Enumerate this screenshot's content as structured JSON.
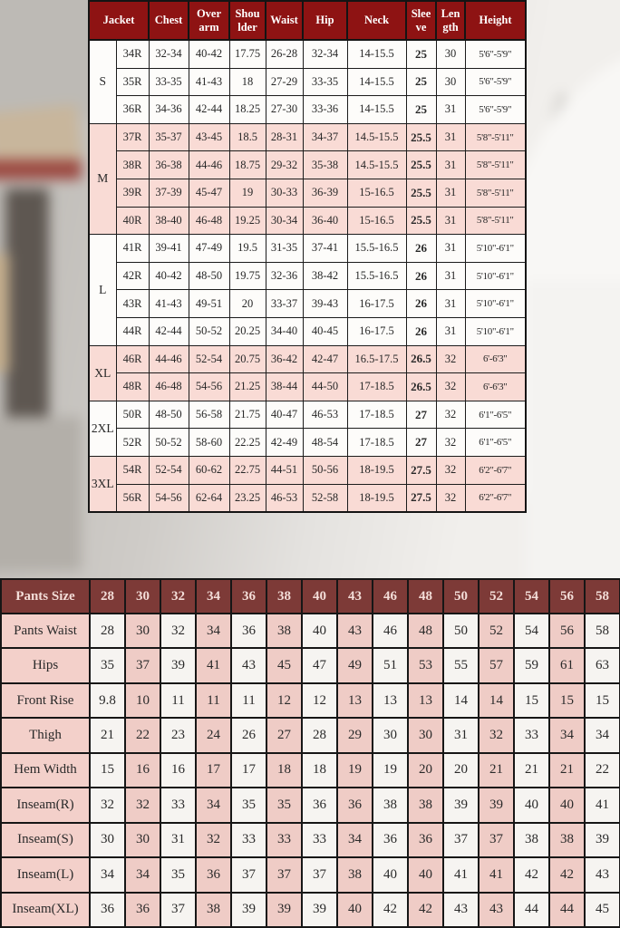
{
  "colors": {
    "jacket_header_bg": "#8e1313",
    "pants_header_bg": "#7d3a37",
    "pink_row": "#f9dbd5",
    "white_row": "#fdfcfa",
    "pants_label_bg": "#f3d0ca",
    "pants_cell_pink": "#efccc6",
    "pants_cell_white": "#f6f4f1",
    "border": "#1c1c1c"
  },
  "chart_data": [
    {
      "type": "table",
      "title": "Jacket size chart",
      "columns": [
        "Jacket",
        "Chest",
        "Over arm",
        "Shou lder",
        "Waist",
        "Hip",
        "Neck",
        "Slee ve",
        "Len gth",
        "Height"
      ],
      "groups": [
        {
          "label": "S",
          "shade": "white",
          "rows": [
            [
              "34R",
              "32-34",
              "40-42",
              "17.75",
              "26-28",
              "32-34",
              "14-15.5",
              "25",
              "30",
              "5'6\"-5'9\""
            ],
            [
              "35R",
              "33-35",
              "41-43",
              "18",
              "27-29",
              "33-35",
              "14-15.5",
              "25",
              "30",
              "5'6\"-5'9\""
            ],
            [
              "36R",
              "34-36",
              "42-44",
              "18.25",
              "27-30",
              "33-36",
              "14-15.5",
              "25",
              "31",
              "5'6\"-5'9\""
            ]
          ]
        },
        {
          "label": "M",
          "shade": "pink",
          "rows": [
            [
              "37R",
              "35-37",
              "43-45",
              "18.5",
              "28-31",
              "34-37",
              "14.5-15.5",
              "25.5",
              "31",
              "5'8\"-5'11\""
            ],
            [
              "38R",
              "36-38",
              "44-46",
              "18.75",
              "29-32",
              "35-38",
              "14.5-15.5",
              "25.5",
              "31",
              "5'8\"-5'11\""
            ],
            [
              "39R",
              "37-39",
              "45-47",
              "19",
              "30-33",
              "36-39",
              "15-16.5",
              "25.5",
              "31",
              "5'8\"-5'11\""
            ],
            [
              "40R",
              "38-40",
              "46-48",
              "19.25",
              "30-34",
              "36-40",
              "15-16.5",
              "25.5",
              "31",
              "5'8\"-5'11\""
            ]
          ]
        },
        {
          "label": "L",
          "shade": "white",
          "rows": [
            [
              "41R",
              "39-41",
              "47-49",
              "19.5",
              "31-35",
              "37-41",
              "15.5-16.5",
              "26",
              "31",
              "5'10\"-6'1\""
            ],
            [
              "42R",
              "40-42",
              "48-50",
              "19.75",
              "32-36",
              "38-42",
              "15.5-16.5",
              "26",
              "31",
              "5'10\"-6'1\""
            ],
            [
              "43R",
              "41-43",
              "49-51",
              "20",
              "33-37",
              "39-43",
              "16-17.5",
              "26",
              "31",
              "5'10\"-6'1\""
            ],
            [
              "44R",
              "42-44",
              "50-52",
              "20.25",
              "34-40",
              "40-45",
              "16-17.5",
              "26",
              "31",
              "5'10\"-6'1\""
            ]
          ]
        },
        {
          "label": "XL",
          "shade": "pink",
          "rows": [
            [
              "46R",
              "44-46",
              "52-54",
              "20.75",
              "36-42",
              "42-47",
              "16.5-17.5",
              "26.5",
              "32",
              "6'-6'3\""
            ],
            [
              "48R",
              "46-48",
              "54-56",
              "21.25",
              "38-44",
              "44-50",
              "17-18.5",
              "26.5",
              "32",
              "6'-6'3\""
            ]
          ]
        },
        {
          "label": "2XL",
          "shade": "white",
          "rows": [
            [
              "50R",
              "48-50",
              "56-58",
              "21.75",
              "40-47",
              "46-53",
              "17-18.5",
              "27",
              "32",
              "6'1\"-6'5\""
            ],
            [
              "52R",
              "50-52",
              "58-60",
              "22.25",
              "42-49",
              "48-54",
              "17-18.5",
              "27",
              "32",
              "6'1\"-6'5\""
            ]
          ]
        },
        {
          "label": "3XL",
          "shade": "pink",
          "rows": [
            [
              "54R",
              "52-54",
              "60-62",
              "22.75",
              "44-51",
              "50-56",
              "18-19.5",
              "27.5",
              "32",
              "6'2\"-6'7\""
            ],
            [
              "56R",
              "54-56",
              "62-64",
              "23.25",
              "46-53",
              "52-58",
              "18-19.5",
              "27.5",
              "32",
              "6'2\"-6'7\""
            ]
          ]
        }
      ]
    },
    {
      "type": "table",
      "title": "Pants size chart",
      "header_label": "Pants Size",
      "sizes": [
        "28",
        "30",
        "32",
        "34",
        "36",
        "38",
        "40",
        "43",
        "46",
        "48",
        "50",
        "52",
        "54",
        "56",
        "58"
      ],
      "rows": [
        {
          "label": "Pants Waist",
          "values": [
            "28",
            "30",
            "32",
            "34",
            "36",
            "38",
            "40",
            "43",
            "46",
            "48",
            "50",
            "52",
            "54",
            "56",
            "58"
          ]
        },
        {
          "label": "Hips",
          "values": [
            "35",
            "37",
            "39",
            "41",
            "43",
            "45",
            "47",
            "49",
            "51",
            "53",
            "55",
            "57",
            "59",
            "61",
            "63"
          ]
        },
        {
          "label": "Front Rise",
          "values": [
            "9.8",
            "10",
            "11",
            "11",
            "11",
            "12",
            "12",
            "13",
            "13",
            "13",
            "14",
            "14",
            "15",
            "15",
            "15"
          ]
        },
        {
          "label": "Thigh",
          "values": [
            "21",
            "22",
            "23",
            "24",
            "26",
            "27",
            "28",
            "29",
            "30",
            "30",
            "31",
            "32",
            "33",
            "34",
            "34"
          ]
        },
        {
          "label": "Hem Width",
          "values": [
            "15",
            "16",
            "16",
            "17",
            "17",
            "18",
            "18",
            "19",
            "19",
            "20",
            "20",
            "21",
            "21",
            "21",
            "22"
          ]
        },
        {
          "label": "Inseam(R)",
          "values": [
            "32",
            "32",
            "33",
            "34",
            "35",
            "35",
            "36",
            "36",
            "38",
            "38",
            "39",
            "39",
            "40",
            "40",
            "41"
          ]
        },
        {
          "label": "Inseam(S)",
          "values": [
            "30",
            "30",
            "31",
            "32",
            "33",
            "33",
            "33",
            "34",
            "36",
            "36",
            "37",
            "37",
            "38",
            "38",
            "39"
          ]
        },
        {
          "label": "Inseam(L)",
          "values": [
            "34",
            "34",
            "35",
            "36",
            "37",
            "37",
            "37",
            "38",
            "40",
            "40",
            "41",
            "41",
            "42",
            "42",
            "43"
          ]
        },
        {
          "label": "Inseam(XL)",
          "values": [
            "36",
            "36",
            "37",
            "38",
            "39",
            "39",
            "39",
            "40",
            "42",
            "42",
            "43",
            "43",
            "44",
            "44",
            "45"
          ]
        }
      ]
    }
  ]
}
